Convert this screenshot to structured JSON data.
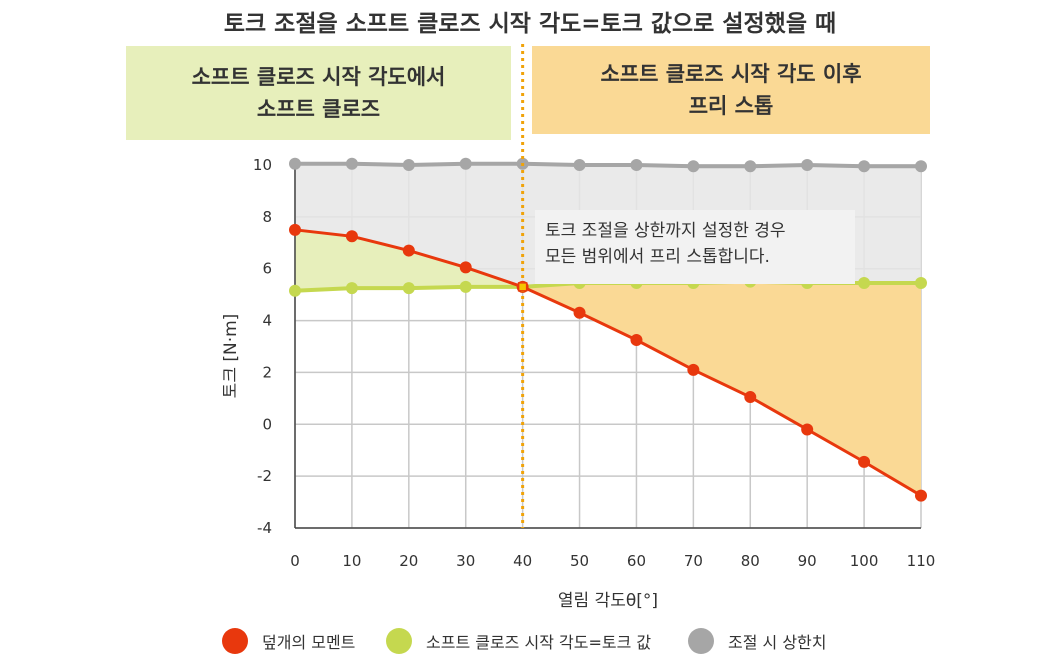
{
  "title": "토크 조절을 소프트 클로즈 시작 각도=토크 값으로 설정했을 때",
  "regions": {
    "left": [
      "소프트 클로즈 시작 각도에서",
      "소프트 클로즈"
    ],
    "right": [
      "소프트 클로즈 시작 각도 이후",
      "프리 스톱"
    ]
  },
  "annotation": [
    "토크 조절을 상한까지 설정한 경우",
    "모든 범위에서 프리 스톱합니다."
  ],
  "colors": {
    "moment": "#e8380d",
    "soft_close": "#c5d84f",
    "limit": "#a6a6a6",
    "fill_limit": "#e6e6e6",
    "fill_left": "#e7efbb",
    "fill_right": "#fad995",
    "divider": "#f0a30a"
  },
  "chart_data": {
    "type": "line",
    "xlabel": "열림 각도θ[°]",
    "ylabel": "토크 [N·m]",
    "xlim": [
      0,
      110
    ],
    "ylim": [
      -4,
      10
    ],
    "x": [
      0,
      10,
      20,
      30,
      40,
      50,
      60,
      70,
      80,
      90,
      100,
      110
    ],
    "x_tick_labels": [
      "0",
      "10",
      "20",
      "30",
      "40",
      "50",
      "60",
      "70",
      "80",
      "90",
      "100",
      "110"
    ],
    "y_ticks": [
      10,
      8,
      6,
      4,
      2,
      0,
      -2,
      -4
    ],
    "y_tick_labels": [
      "10",
      "8",
      "6",
      "4",
      "2",
      "0",
      "-2",
      "-4"
    ],
    "divider_x": 40,
    "grid": true,
    "series": [
      {
        "name": "덮개의 모멘트",
        "color_key": "moment",
        "values": [
          7.5,
          7.25,
          6.7,
          6.05,
          5.3,
          4.3,
          3.25,
          2.1,
          1.05,
          -0.2,
          -1.45,
          -2.75
        ]
      },
      {
        "name": "소프트 클로즈 시작 각도=토크 값",
        "color_key": "soft_close",
        "values": [
          5.15,
          5.25,
          5.25,
          5.3,
          5.3,
          5.45,
          5.45,
          5.45,
          5.5,
          5.45,
          5.45,
          5.45
        ]
      },
      {
        "name": "조절 시 상한치",
        "color_key": "limit",
        "values": [
          10.05,
          10.05,
          10.0,
          10.05,
          10.05,
          10.0,
          10.0,
          9.95,
          9.95,
          10.0,
          9.95,
          9.95
        ]
      }
    ]
  }
}
